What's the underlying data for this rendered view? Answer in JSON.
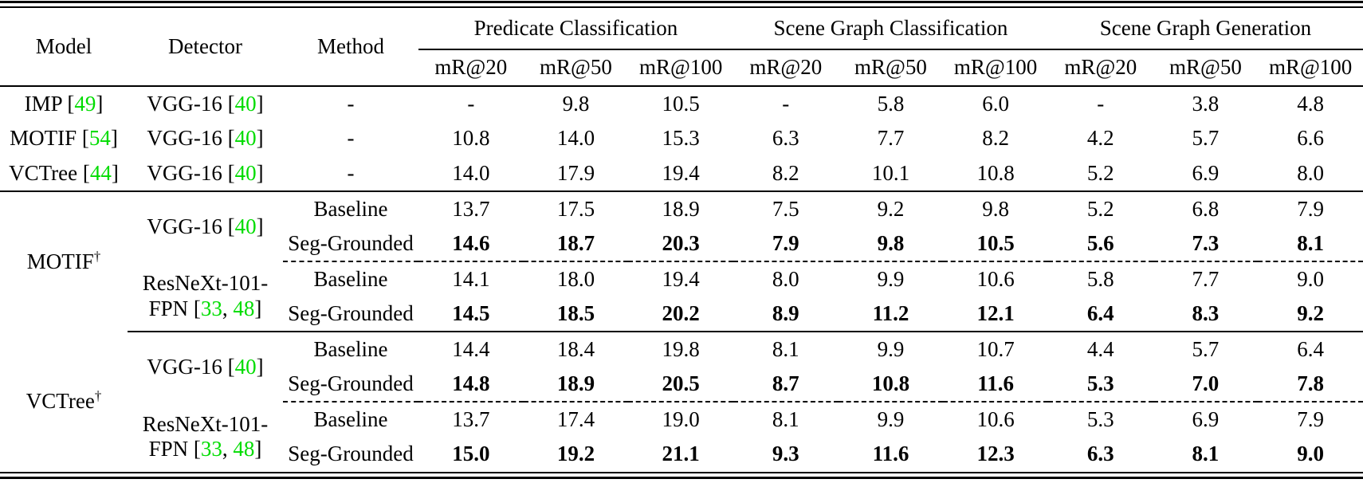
{
  "colors": {
    "citation_green": "#00DC00",
    "text": "#000000",
    "background": "#FFFFFF"
  },
  "header": {
    "model": "Model",
    "detector": "Detector",
    "method": "Method",
    "groups": [
      {
        "label": "Predicate Classification"
      },
      {
        "label": "Scene Graph Classification"
      },
      {
        "label": "Scene Graph Generation"
      }
    ],
    "metrics": [
      "mR@20",
      "mR@50",
      "mR@100",
      "mR@20",
      "mR@50",
      "mR@100",
      "mR@20",
      "mR@50",
      "mR@100"
    ]
  },
  "rows": [
    {
      "model": [
        {
          "t": "IMP ["
        },
        {
          "t": "49",
          "c": true
        },
        {
          "t": "]"
        }
      ],
      "detector": [
        {
          "t": "VGG-16 ["
        },
        {
          "t": "40",
          "c": true
        },
        {
          "t": "]"
        }
      ],
      "method": "-",
      "values": [
        "-",
        "9.8",
        "10.5",
        "-",
        "5.8",
        "6.0",
        "-",
        "3.8",
        "4.8"
      ]
    },
    {
      "model": [
        {
          "t": "MOTIF ["
        },
        {
          "t": "54",
          "c": true
        },
        {
          "t": "]"
        }
      ],
      "detector": [
        {
          "t": "VGG-16 ["
        },
        {
          "t": "40",
          "c": true
        },
        {
          "t": "]"
        }
      ],
      "method": "-",
      "values": [
        "10.8",
        "14.0",
        "15.3",
        "6.3",
        "7.7",
        "8.2",
        "4.2",
        "5.7",
        "6.6"
      ]
    },
    {
      "model": [
        {
          "t": "VCTree ["
        },
        {
          "t": "44",
          "c": true
        },
        {
          "t": "]"
        }
      ],
      "detector": [
        {
          "t": "VGG-16 ["
        },
        {
          "t": "40",
          "c": true
        },
        {
          "t": "]"
        }
      ],
      "method": "-",
      "values": [
        "14.0",
        "17.9",
        "19.4",
        "8.2",
        "10.1",
        "10.8",
        "5.2",
        "6.9",
        "8.0"
      ]
    }
  ],
  "sections": [
    {
      "model": [
        {
          "t": "MOTIF"
        },
        {
          "t": "†",
          "sup": true
        }
      ],
      "blocks": [
        {
          "detector": [
            {
              "t": "VGG-16 ["
            },
            {
              "t": "40",
              "c": true
            },
            {
              "t": "]"
            }
          ],
          "rows": [
            {
              "method": "Baseline",
              "values": [
                "13.7",
                "17.5",
                "18.9",
                "7.5",
                "9.2",
                "9.8",
                "5.2",
                "6.8",
                "7.9"
              ]
            },
            {
              "method": "Seg-Grounded",
              "values": [
                "14.6",
                "18.7",
                "20.3",
                "7.9",
                "9.8",
                "10.5",
                "5.6",
                "7.3",
                "8.1"
              ]
            }
          ]
        },
        {
          "detector": [
            {
              "t": "ResNeXt-101-"
            },
            {
              "br": true
            },
            {
              "t": "FPN ["
            },
            {
              "t": "33",
              "c": true
            },
            {
              "t": ", "
            },
            {
              "t": "48",
              "c": true
            },
            {
              "t": "]"
            }
          ],
          "rows": [
            {
              "method": "Baseline",
              "values": [
                "14.1",
                "18.0",
                "19.4",
                "8.0",
                "9.9",
                "10.6",
                "5.8",
                "7.7",
                "9.0"
              ]
            },
            {
              "method": "Seg-Grounded",
              "values": [
                "14.5",
                "18.5",
                "20.2",
                "8.9",
                "11.2",
                "12.1",
                "6.4",
                "8.3",
                "9.2"
              ]
            }
          ]
        }
      ]
    },
    {
      "model": [
        {
          "t": "VCTree"
        },
        {
          "t": "†",
          "sup": true
        }
      ],
      "blocks": [
        {
          "detector": [
            {
              "t": "VGG-16 ["
            },
            {
              "t": "40",
              "c": true
            },
            {
              "t": "]"
            }
          ],
          "rows": [
            {
              "method": "Baseline",
              "values": [
                "14.4",
                "18.4",
                "19.8",
                "8.1",
                "9.9",
                "10.7",
                "4.4",
                "5.7",
                "6.4"
              ]
            },
            {
              "method": "Seg-Grounded",
              "values": [
                "14.8",
                "18.9",
                "20.5",
                "8.7",
                "10.8",
                "11.6",
                "5.3",
                "7.0",
                "7.8"
              ]
            }
          ]
        },
        {
          "detector": [
            {
              "t": "ResNeXt-101-"
            },
            {
              "br": true
            },
            {
              "t": "FPN ["
            },
            {
              "t": "33",
              "c": true
            },
            {
              "t": ", "
            },
            {
              "t": "48",
              "c": true
            },
            {
              "t": "]"
            }
          ],
          "rows": [
            {
              "method": "Baseline",
              "values": [
                "13.7",
                "17.4",
                "19.0",
                "8.1",
                "9.9",
                "10.6",
                "5.3",
                "6.9",
                "7.9"
              ]
            },
            {
              "method": "Seg-Grounded",
              "values": [
                "15.0",
                "19.2",
                "21.1",
                "9.3",
                "11.6",
                "12.3",
                "6.3",
                "8.1",
                "9.0"
              ]
            }
          ]
        }
      ]
    }
  ]
}
